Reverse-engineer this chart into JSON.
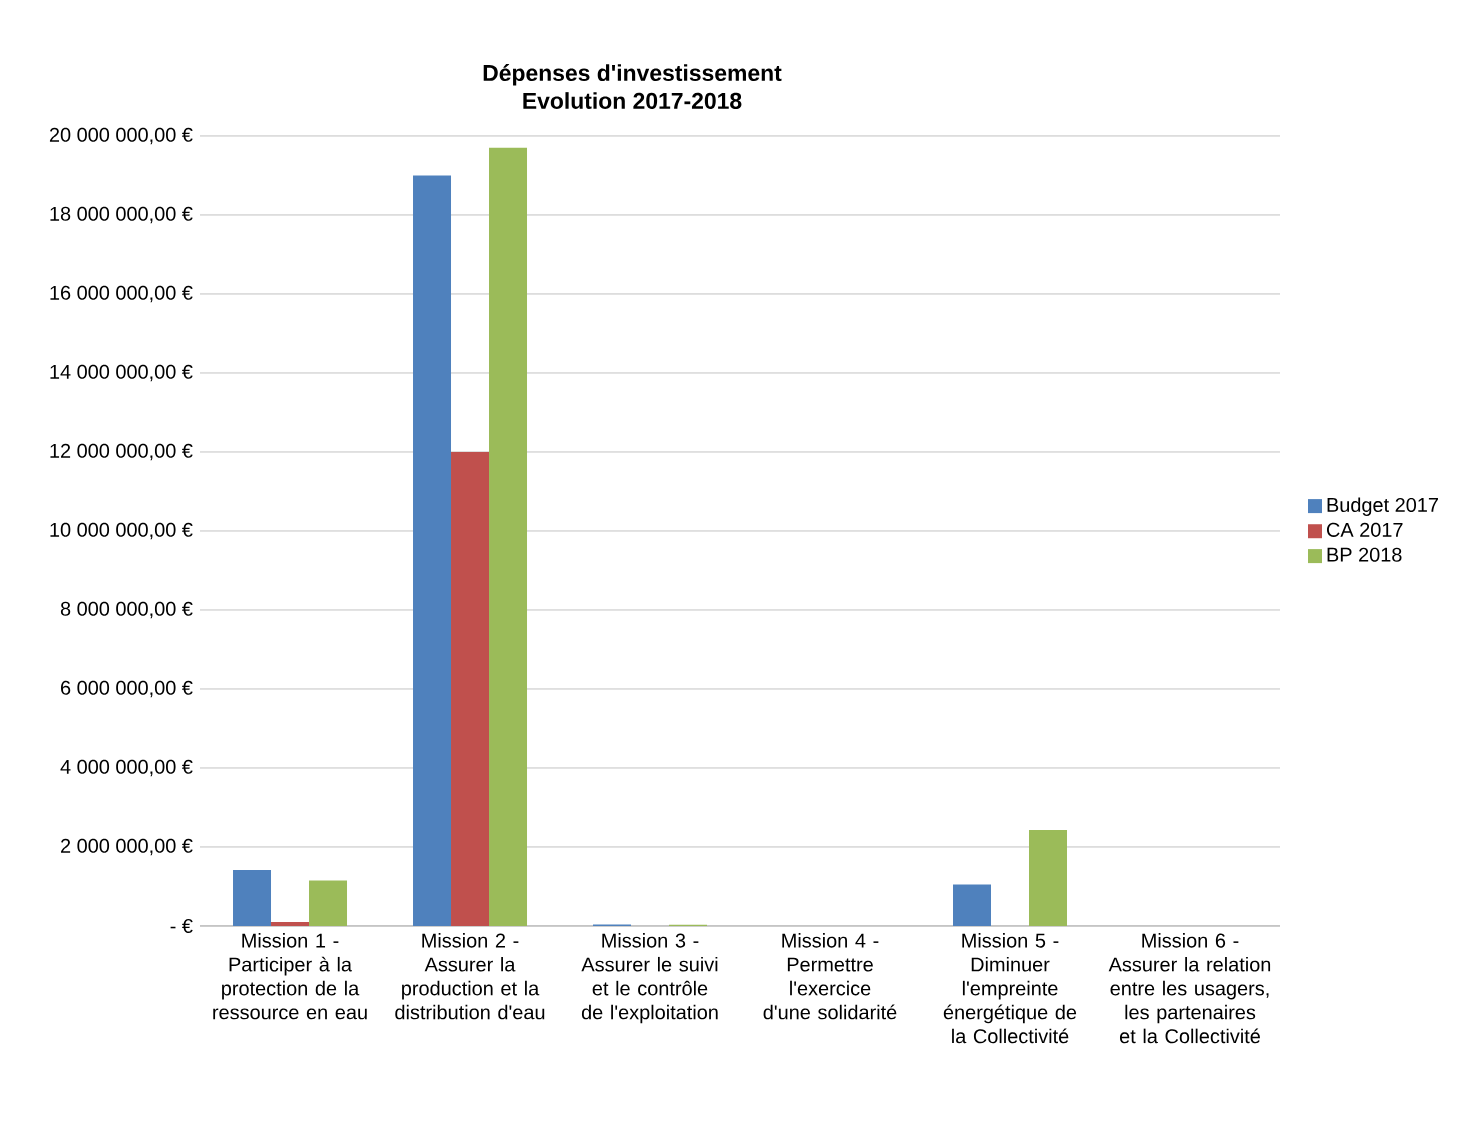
{
  "chart_data": {
    "type": "bar",
    "title": "Dépenses d'investissement",
    "subtitle": "Evolution 2017-2018",
    "categories": [
      "Mission 1 - Participer à la protection de la ressource en eau",
      "Mission 2 - Assurer la production et la distribution d'eau",
      "Mission 3 - Assurer le suivi et le contrôle de l'exploitation",
      "Mission 4 - Permettre l'exercice d'une solidarité",
      "Mission 5 - Diminuer l'empreinte énergétique de la Collectivité",
      "Mission 6 - Assurer la relation entre les usagers, les partenaires et la Collectivité"
    ],
    "series": [
      {
        "name": "Budget 2017",
        "color": "#4f81bd",
        "values": [
          1420000,
          19000000,
          40000,
          null,
          1050000,
          null
        ]
      },
      {
        "name": "CA 2017",
        "color": "#c0504d",
        "values": [
          100000,
          12000000,
          null,
          null,
          null,
          null
        ]
      },
      {
        "name": "BP 2018",
        "color": "#9bbb59",
        "values": [
          1150000,
          19700000,
          30000,
          null,
          2430000,
          null
        ]
      }
    ],
    "ylim": [
      0,
      20000000
    ],
    "yticks": [
      {
        "value": 0,
        "label": "-  €"
      },
      {
        "value": 2000000,
        "label": "2 000 000,00 €"
      },
      {
        "value": 4000000,
        "label": "4 000 000,00 €"
      },
      {
        "value": 6000000,
        "label": "6 000 000,00 €"
      },
      {
        "value": 8000000,
        "label": "8 000 000,00 €"
      },
      {
        "value": 10000000,
        "label": "10 000 000,00 €"
      },
      {
        "value": 12000000,
        "label": "12 000 000,00 €"
      },
      {
        "value": 14000000,
        "label": "14 000 000,00 €"
      },
      {
        "value": 16000000,
        "label": "16 000 000,00 €"
      },
      {
        "value": 18000000,
        "label": "18 000 000,00 €"
      },
      {
        "value": 20000000,
        "label": "20 000 000,00 €"
      }
    ],
    "grid": "y",
    "legend": "right"
  }
}
